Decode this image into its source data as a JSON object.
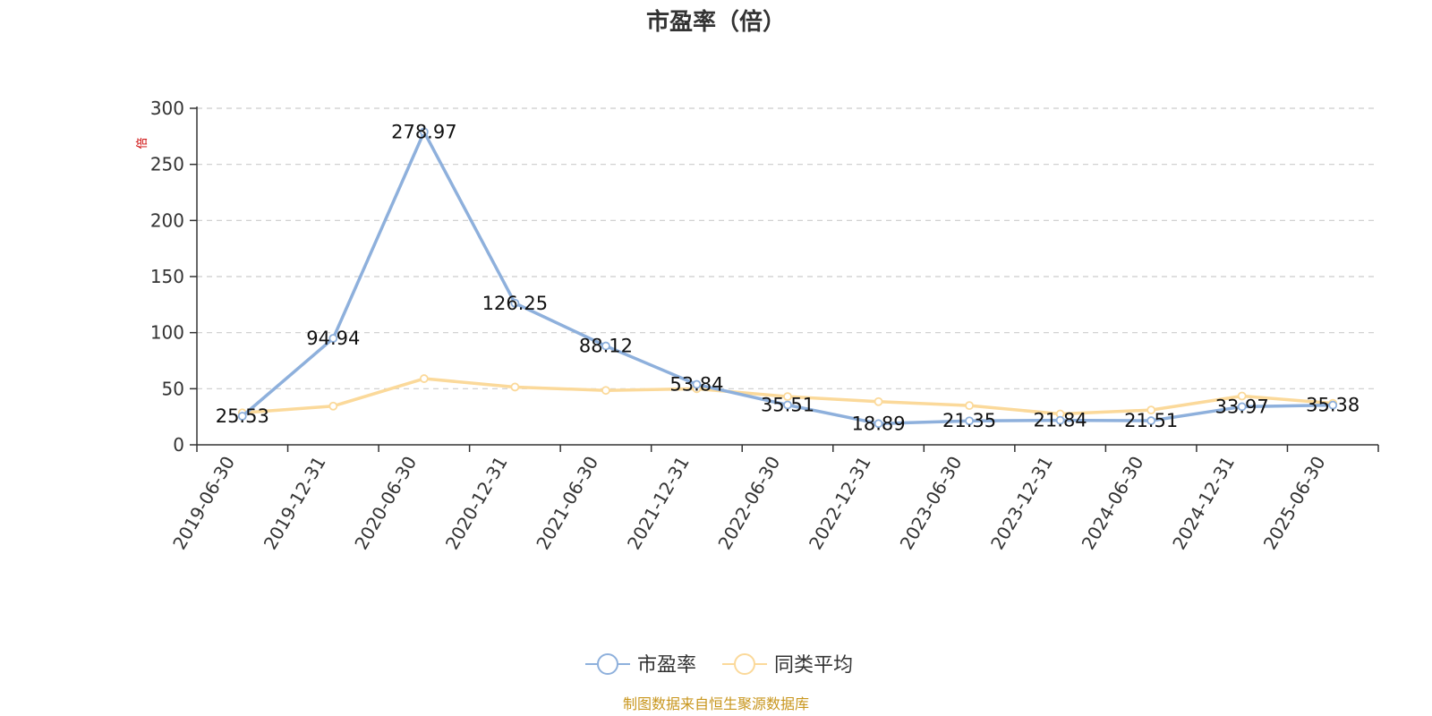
{
  "chart_data": {
    "type": "line",
    "title": "市盈率（倍）",
    "y_unit": "倍",
    "ylim": [
      0,
      300
    ],
    "yticks": [
      0,
      50,
      100,
      150,
      200,
      250,
      300
    ],
    "grid": true,
    "legend_position": "bottom-center",
    "categories": [
      "2019-06-30",
      "2019-12-31",
      "2020-06-30",
      "2020-12-31",
      "2021-06-30",
      "2021-12-31",
      "2022-06-30",
      "2022-12-31",
      "2023-06-30",
      "2023-12-31",
      "2024-06-30",
      "2024-12-31",
      "2025-06-30"
    ],
    "series": [
      {
        "name": "市盈率",
        "color": "#8eb0dc",
        "values": [
          25.53,
          94.94,
          278.97,
          126.25,
          88.12,
          53.84,
          35.51,
          18.89,
          21.35,
          21.84,
          21.51,
          33.97,
          35.38
        ],
        "labels": [
          "25.53",
          "94.94",
          "278.97",
          "126.25",
          "88.12",
          "53.84",
          "35.51",
          "18.89",
          "21.35",
          "21.84",
          "21.51",
          "33.97",
          "35.38"
        ]
      },
      {
        "name": "同类平均",
        "color": "#fbd99a",
        "values": [
          28.5,
          34.5,
          59.0,
          51.5,
          48.5,
          50.0,
          43.0,
          38.5,
          35.0,
          27.5,
          31.0,
          43.5,
          37.0
        ]
      }
    ]
  },
  "source_note": "制图数据来自恒生聚源数据库"
}
